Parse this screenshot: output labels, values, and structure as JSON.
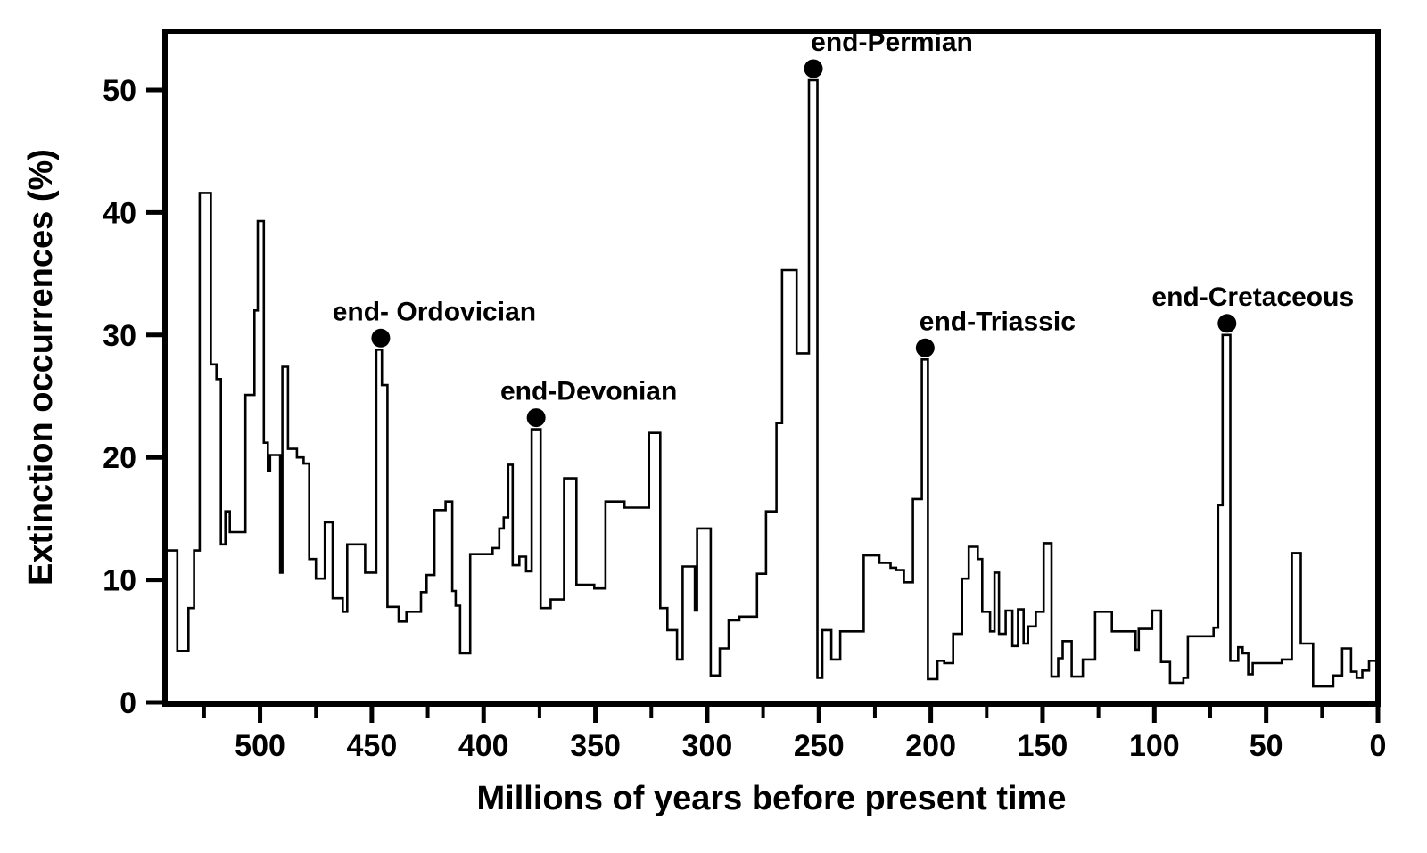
{
  "chart_data": {
    "type": "line",
    "subtype": "step",
    "title": "",
    "xlabel": "Millions of years before present time",
    "ylabel": "Extinction occurrences (%)",
    "line_color": "#000000",
    "background_color": "#ffffff",
    "grid": false,
    "legend": "none",
    "x_axis": {
      "min": 0,
      "max": 542.5,
      "reversed": true,
      "major_ticks": [
        500,
        450,
        400,
        350,
        300,
        250,
        200,
        150,
        100,
        50,
        0
      ],
      "minor_ticks": [
        525,
        475,
        425,
        375,
        325,
        275,
        225,
        175,
        125,
        75,
        25
      ]
    },
    "y_axis": {
      "min": 0,
      "max": 55,
      "major_ticks": [
        0,
        10,
        20,
        30,
        40,
        50
      ]
    },
    "steps_note": "Each entry is [age_Ma_where_interval_begins, extinction_percent]; value holds until the next entry; final value extends to 0 Ma.",
    "steps": [
      [
        542,
        12.4
      ],
      [
        537,
        4.2
      ],
      [
        532,
        7.7
      ],
      [
        529.5,
        12.4
      ],
      [
        527,
        41.6
      ],
      [
        522,
        27.6
      ],
      [
        519.5,
        26.4
      ],
      [
        517.5,
        12.9
      ],
      [
        515.5,
        15.6
      ],
      [
        513.5,
        13.9
      ],
      [
        506.5,
        25.1
      ],
      [
        502.5,
        32.0
      ],
      [
        501,
        39.3
      ],
      [
        498.3,
        21.2
      ],
      [
        496.5,
        18.9
      ],
      [
        495.5,
        20.2
      ],
      [
        491,
        10.6
      ],
      [
        490,
        27.4
      ],
      [
        487.5,
        20.7
      ],
      [
        483.5,
        20.0
      ],
      [
        480.5,
        19.5
      ],
      [
        478,
        11.7
      ],
      [
        475,
        10.1
      ],
      [
        471,
        14.7
      ],
      [
        467.5,
        8.5
      ],
      [
        463,
        7.4
      ],
      [
        461,
        12.9
      ],
      [
        453,
        10.6
      ],
      [
        448,
        28.8
      ],
      [
        445.5,
        25.9
      ],
      [
        443,
        7.8
      ],
      [
        438,
        6.6
      ],
      [
        434.5,
        7.4
      ],
      [
        428,
        9.0
      ],
      [
        425.5,
        10.4
      ],
      [
        422,
        15.7
      ],
      [
        417,
        16.4
      ],
      [
        414,
        9.1
      ],
      [
        412.5,
        7.9
      ],
      [
        410.5,
        4.0
      ],
      [
        406,
        12.1
      ],
      [
        396,
        12.6
      ],
      [
        393,
        14.2
      ],
      [
        391,
        15.1
      ],
      [
        389,
        19.4
      ],
      [
        387,
        11.2
      ],
      [
        384,
        11.9
      ],
      [
        381,
        10.7
      ],
      [
        378.5,
        22.3
      ],
      [
        374.5,
        7.7
      ],
      [
        370,
        8.4
      ],
      [
        364,
        18.3
      ],
      [
        358.5,
        9.6
      ],
      [
        350.5,
        9.3
      ],
      [
        345.5,
        16.4
      ],
      [
        337,
        15.9
      ],
      [
        326,
        22.0
      ],
      [
        321,
        7.7
      ],
      [
        317.8,
        5.9
      ],
      [
        313.5,
        3.5
      ],
      [
        311,
        11.1
      ],
      [
        305.5,
        7.5
      ],
      [
        304.5,
        14.2
      ],
      [
        298.4,
        2.2
      ],
      [
        294.4,
        4.4
      ],
      [
        290.4,
        6.7
      ],
      [
        285.6,
        7.0
      ],
      [
        277.7,
        10.5
      ],
      [
        273.7,
        15.6
      ],
      [
        269,
        22.8
      ],
      [
        266.5,
        35.3
      ],
      [
        260,
        28.5
      ],
      [
        254.5,
        50.8
      ],
      [
        250.7,
        2.0
      ],
      [
        248.5,
        5.9
      ],
      [
        244.5,
        3.5
      ],
      [
        240.5,
        5.8
      ],
      [
        230,
        12.0
      ],
      [
        223,
        11.4
      ],
      [
        218,
        11.0
      ],
      [
        215.5,
        10.8
      ],
      [
        212,
        9.8
      ],
      [
        208,
        16.6
      ],
      [
        204,
        28.0
      ],
      [
        201.3,
        1.9
      ],
      [
        197,
        3.4
      ],
      [
        194,
        3.2
      ],
      [
        190,
        5.6
      ],
      [
        186,
        10.1
      ],
      [
        183,
        12.7
      ],
      [
        179,
        11.7
      ],
      [
        177,
        7.4
      ],
      [
        173.5,
        5.8
      ],
      [
        171.5,
        10.6
      ],
      [
        169.5,
        5.6
      ],
      [
        166.5,
        7.5
      ],
      [
        163.5,
        4.6
      ],
      [
        161,
        7.6
      ],
      [
        158.5,
        4.8
      ],
      [
        156.5,
        6.2
      ],
      [
        153,
        7.4
      ],
      [
        149.5,
        13.0
      ],
      [
        146,
        2.1
      ],
      [
        143,
        3.6
      ],
      [
        141,
        5.0
      ],
      [
        137,
        2.1
      ],
      [
        132,
        3.5
      ],
      [
        126.5,
        7.4
      ],
      [
        119,
        5.8
      ],
      [
        108.4,
        4.3
      ],
      [
        107,
        6.0
      ],
      [
        101,
        7.5
      ],
      [
        97,
        3.3
      ],
      [
        93,
        1.6
      ],
      [
        87,
        2.0
      ],
      [
        85,
        5.4
      ],
      [
        73.5,
        6.1
      ],
      [
        71.5,
        16.1
      ],
      [
        69.5,
        30.0
      ],
      [
        66,
        3.4
      ],
      [
        62.5,
        4.5
      ],
      [
        60.5,
        4.0
      ],
      [
        58,
        2.3
      ],
      [
        56,
        3.2
      ],
      [
        43,
        3.5
      ],
      [
        38.5,
        12.2
      ],
      [
        34.5,
        4.8
      ],
      [
        29,
        1.3
      ],
      [
        20,
        2.2
      ],
      [
        16,
        4.4
      ],
      [
        12,
        2.5
      ],
      [
        9.5,
        2.0
      ],
      [
        7,
        2.6
      ],
      [
        4,
        3.4
      ]
    ],
    "annotations": [
      {
        "label": "end- Ordovician",
        "ma": 446,
        "value": 28.8
      },
      {
        "label": "end-Devonian",
        "ma": 376.5,
        "value": 22.3
      },
      {
        "label": "end-Permian",
        "ma": 252.5,
        "value": 50.8
      },
      {
        "label": "end-Triassic",
        "ma": 202.5,
        "value": 28.0
      },
      {
        "label": "end-Cretaceous",
        "ma": 67.5,
        "value": 30.0
      }
    ]
  }
}
